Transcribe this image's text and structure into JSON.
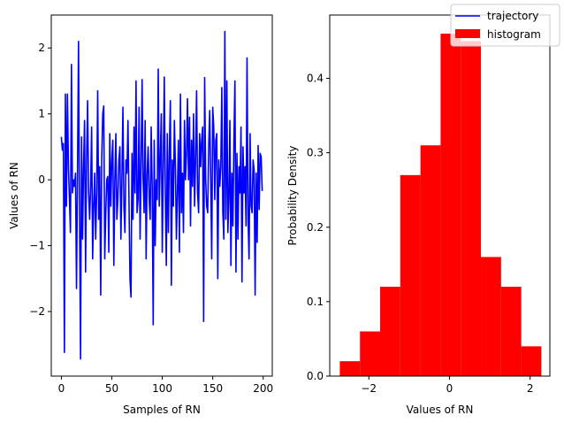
{
  "colors": {
    "line": "#0000ff",
    "bars": "#ff0000",
    "axis": "#000000",
    "legend_border": "#cccccc"
  },
  "legend": {
    "placement": "upper-right",
    "entries": [
      {
        "name": "trajectory",
        "kind": "line"
      },
      {
        "name": "histogram",
        "kind": "patch"
      }
    ]
  },
  "chart_data": [
    {
      "type": "line",
      "xlabel": "Samples of RN",
      "ylabel": "Values of RN",
      "xlim": [
        -10,
        209
      ],
      "ylim": [
        -2.98,
        2.5
      ],
      "xticks": [
        0,
        50,
        100,
        150,
        200
      ],
      "yticks": [
        -2,
        -1,
        0,
        1,
        2
      ],
      "grid": false,
      "series": [
        {
          "name": "trajectory",
          "x_start": 0,
          "x_step": 1,
          "values": [
            0.65,
            0.45,
            0.55,
            -2.62,
            1.3,
            -0.4,
            1.3,
            0.2,
            -0.3,
            -0.8,
            1.75,
            -0.2,
            0.0,
            -0.1,
            0.1,
            -1.65,
            0.1,
            2.1,
            -0.5,
            -2.72,
            0.65,
            -0.9,
            0.2,
            0.9,
            -1.4,
            0.3,
            1.2,
            -0.2,
            -0.6,
            -0.1,
            0.8,
            -1.2,
            -0.4,
            0.1,
            -0.9,
            -0.2,
            1.35,
            -0.6,
            0.2,
            -1.75,
            0.3,
            1.0,
            1.12,
            -1.2,
            -0.5,
            0.0,
            0.05,
            -1.1,
            0.7,
            -0.4,
            0.3,
            0.6,
            -1.3,
            0.0,
            0.7,
            -0.6,
            -0.3,
            0.3,
            0.5,
            -0.9,
            0.0,
            1.1,
            -0.4,
            -0.8,
            0.3,
            0.1,
            0.9,
            -0.3,
            -1.5,
            -1.78,
            0.4,
            -0.6,
            0.8,
            -0.2,
            1.5,
            -0.5,
            -0.3,
            1.1,
            -0.9,
            0.2,
            1.52,
            0.0,
            -0.5,
            0.9,
            -1.2,
            0.1,
            0.5,
            -0.3,
            -0.6,
            0.8,
            -0.1,
            -2.2,
            0.6,
            -1.0,
            0.0,
            -0.3,
            1.68,
            -0.4,
            0.3,
            1.0,
            -1.1,
            0.2,
            1.56,
            -0.2,
            -1.3,
            0.7,
            -0.8,
            0.4,
            1.2,
            -1.6,
            0.3,
            -0.4,
            0.9,
            0.2,
            -0.9,
            -0.2,
            0.6,
            -1.1,
            1.3,
            -0.5,
            0.1,
            -0.8,
            0.9,
            0.0,
            0.4,
            1.23,
            0.0,
            0.95,
            -0.7,
            0.6,
            -0.1,
            1.0,
            -0.4,
            0.3,
            1.35,
            -0.2,
            -0.5,
            0.7,
            0.2,
            0.6,
            0.8,
            -2.15,
            1.55,
            0.0,
            -0.4,
            -0.5,
            0.5,
            1.05,
            0.0,
            -1.2,
            1.1,
            0.8,
            -0.3,
            0.6,
            0.7,
            -1.5,
            0.3,
            -0.1,
            0.2,
            1.4,
            -0.5,
            -0.9,
            2.25,
            -0.6,
            1.5,
            -0.8,
            -0.3,
            0.9,
            -1.3,
            0.1,
            -0.7,
            0.6,
            1.5,
            -1.4,
            0.4,
            -0.9,
            0.2,
            -0.2,
            0.8,
            -1.55,
            0.5,
            -0.2,
            0.2,
            -0.7,
            1.85,
            -0.6,
            -1.2,
            0.7,
            -0.4,
            -0.5,
            0.3,
            0.15,
            -1.75,
            0.1,
            -0.95,
            0.52,
            -0.45,
            0.4,
            0.35,
            -0.17
          ]
        }
      ]
    },
    {
      "type": "bar",
      "xlabel": "Values of RN",
      "ylabel": "Probability Density",
      "xlim": [
        -2.97,
        2.49
      ],
      "ylim": [
        0,
        0.485
      ],
      "xticks": [
        -2,
        0,
        2
      ],
      "yticks": [
        0.0,
        0.1,
        0.2,
        0.3,
        0.4
      ],
      "grid": false,
      "series": [
        {
          "name": "histogram",
          "bin_edges": [
            -2.72,
            -2.22,
            -1.72,
            -1.22,
            -0.72,
            -0.22,
            0.28,
            0.78,
            1.28,
            1.78,
            2.28
          ],
          "values": [
            0.02,
            0.06,
            0.12,
            0.27,
            0.31,
            0.46,
            0.45,
            0.16,
            0.12,
            0.04
          ]
        }
      ]
    }
  ]
}
